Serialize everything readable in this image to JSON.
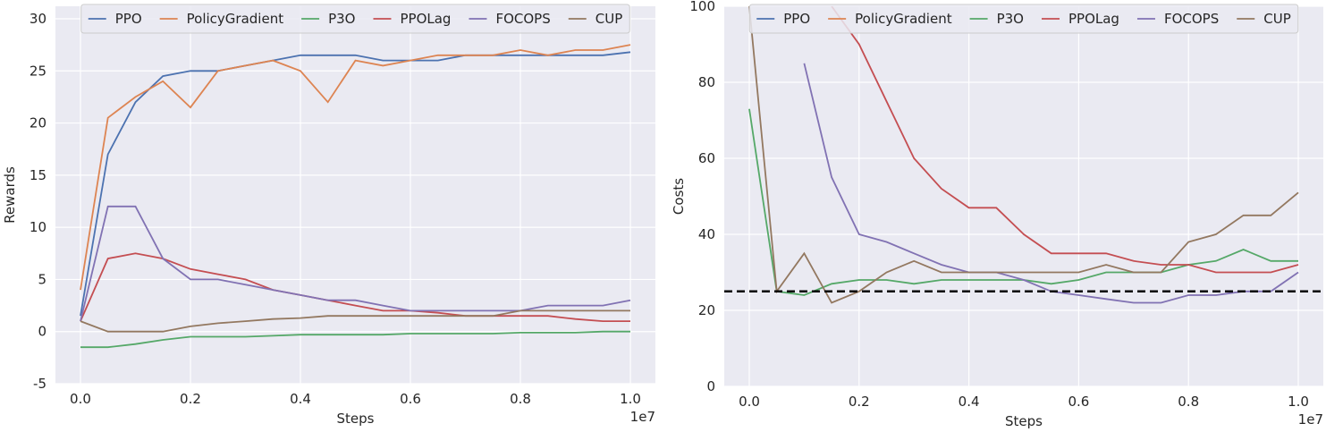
{
  "chart_data": [
    {
      "type": "line",
      "ylabel": "Rewards",
      "xlabel": "Steps",
      "x_offset_label": "1e7",
      "grid": true,
      "legend": "upper center",
      "x": [
        0,
        0.05,
        0.1,
        0.15,
        0.2,
        0.25,
        0.3,
        0.35,
        0.4,
        0.45,
        0.5,
        0.55,
        0.6,
        0.65,
        0.7,
        0.75,
        0.8,
        0.85,
        0.9,
        0.95,
        1
      ],
      "xlim": [
        -0.0455,
        1.0455
      ],
      "ylim": [
        -5,
        31.2
      ],
      "xticks": [
        {
          "value": 0,
          "label": "0.0"
        },
        0.2,
        0.4,
        0.6,
        0.8,
        {
          "value": 1,
          "label": "1.0"
        }
      ],
      "yticks": [
        -5,
        0,
        5,
        10,
        15,
        20,
        25,
        30
      ],
      "series": [
        {
          "name": "PPO",
          "color": "#4c72b0",
          "values": [
            1.5,
            17,
            22,
            24.5,
            25,
            25,
            25.5,
            26,
            26.5,
            26.5,
            26.5,
            26,
            26,
            26,
            26.5,
            26.5,
            26.5,
            26.5,
            26.5,
            26.5,
            26.8
          ]
        },
        {
          "name": "PolicyGradient",
          "color": "#dd8452",
          "values": [
            4,
            20.5,
            22.5,
            24,
            21.5,
            25,
            25.5,
            26,
            25,
            22,
            26,
            25.5,
            26,
            26.5,
            26.5,
            26.5,
            27,
            26.5,
            27,
            27,
            27.5
          ]
        },
        {
          "name": "P3O",
          "color": "#55a868",
          "values": [
            -1.5,
            -1.5,
            -1.2,
            -0.8,
            -0.5,
            -0.5,
            -0.5,
            -0.4,
            -0.3,
            -0.3,
            -0.3,
            -0.3,
            -0.2,
            -0.2,
            -0.2,
            -0.2,
            -0.1,
            -0.1,
            -0.1,
            0,
            0
          ]
        },
        {
          "name": "PPOLag",
          "color": "#c44e52",
          "values": [
            1,
            7,
            7.5,
            7,
            6,
            5.5,
            5,
            4,
            3.5,
            3,
            2.5,
            2,
            2,
            1.8,
            1.5,
            1.5,
            1.5,
            1.5,
            1.2,
            1,
            1
          ]
        },
        {
          "name": "FOCOPS",
          "color": "#8172b3",
          "values": [
            1,
            12,
            12,
            7,
            5,
            5,
            4.5,
            4,
            3.5,
            3,
            3,
            2.5,
            2,
            2,
            2,
            2,
            2,
            2.5,
            2.5,
            2.5,
            3
          ]
        },
        {
          "name": "CUP",
          "color": "#937860",
          "values": [
            1,
            0,
            0,
            0,
            0.5,
            0.8,
            1,
            1.2,
            1.3,
            1.5,
            1.5,
            1.5,
            1.5,
            1.5,
            1.5,
            1.5,
            2,
            2,
            2,
            2,
            2
          ]
        }
      ]
    },
    {
      "type": "line",
      "ylabel": "Costs",
      "xlabel": "Steps",
      "x_offset_label": "1e7",
      "grid": true,
      "legend": "upper center",
      "threshold": 25,
      "x": [
        0,
        0.05,
        0.1,
        0.15,
        0.2,
        0.25,
        0.3,
        0.35,
        0.4,
        0.45,
        0.5,
        0.55,
        0.6,
        0.65,
        0.7,
        0.75,
        0.8,
        0.85,
        0.9,
        0.95,
        1
      ],
      "xlim": [
        -0.0456,
        1.0456
      ],
      "ylim": [
        0,
        100
      ],
      "xticks": [
        {
          "value": 0,
          "label": "0.0"
        },
        0.2,
        0.4,
        0.6,
        0.8,
        {
          "value": 1,
          "label": "1.0"
        }
      ],
      "yticks": [
        0,
        20,
        40,
        60,
        80,
        100
      ],
      "series": [
        {
          "name": "PPO",
          "color": "#4c72b0",
          "values": [
            null,
            null,
            null,
            null,
            null,
            null,
            null,
            null,
            null,
            null,
            null,
            null,
            null,
            null,
            null,
            null,
            null,
            null,
            null,
            null,
            null
          ]
        },
        {
          "name": "PolicyGradient",
          "color": "#dd8452",
          "values": [
            null,
            null,
            null,
            null,
            null,
            null,
            null,
            null,
            null,
            null,
            null,
            null,
            null,
            null,
            null,
            null,
            null,
            null,
            null,
            null,
            null
          ]
        },
        {
          "name": "P3O",
          "color": "#55a868",
          "values": [
            73,
            25,
            24,
            27,
            28,
            28,
            27,
            28,
            28,
            28,
            28,
            27,
            28,
            30,
            30,
            30,
            32,
            33,
            36,
            33,
            33
          ]
        },
        {
          "name": "PPOLag",
          "color": "#c44e52",
          "values": [
            null,
            null,
            null,
            100,
            90,
            75,
            60,
            52,
            47,
            47,
            40,
            35,
            35,
            35,
            33,
            32,
            32,
            30,
            30,
            30,
            32
          ]
        },
        {
          "name": "FOCOPS",
          "color": "#8172b3",
          "values": [
            null,
            null,
            85,
            55,
            40,
            38,
            35,
            32,
            30,
            30,
            28,
            25,
            24,
            23,
            22,
            22,
            24,
            24,
            25,
            25,
            30
          ]
        },
        {
          "name": "CUP",
          "color": "#937860",
          "values": [
            100,
            25,
            35,
            22,
            25,
            30,
            33,
            30,
            30,
            30,
            30,
            30,
            30,
            32,
            30,
            30,
            38,
            40,
            45,
            45,
            51
          ]
        }
      ]
    }
  ]
}
